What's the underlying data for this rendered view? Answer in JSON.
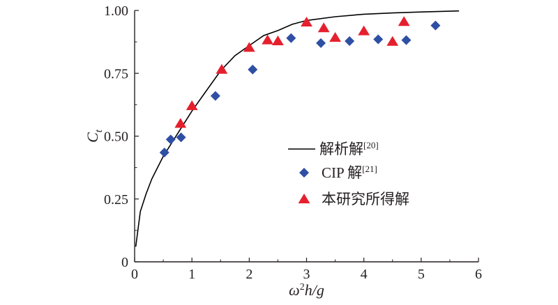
{
  "chart_data": {
    "type": "scatter",
    "xlabel": "ω²h/g",
    "ylabel": "Ct",
    "xlim": [
      0,
      6
    ],
    "ylim": [
      0,
      1.0
    ],
    "grid": false,
    "legend_position": "center-right",
    "x_ticks": [
      "0",
      "1",
      "2",
      "3",
      "4",
      "5",
      "6"
    ],
    "y_ticks": [
      "0",
      "0.25",
      "0.50",
      "0.75",
      "1.00"
    ],
    "series": [
      {
        "name": "解析解[20]",
        "kind": "line",
        "color": "#000000",
        "points": [
          [
            0.02,
            0.06
          ],
          [
            0.1,
            0.2
          ],
          [
            0.2,
            0.27
          ],
          [
            0.3,
            0.33
          ],
          [
            0.5,
            0.42
          ],
          [
            0.75,
            0.51
          ],
          [
            1.0,
            0.6
          ],
          [
            1.25,
            0.68
          ],
          [
            1.5,
            0.76
          ],
          [
            1.75,
            0.82
          ],
          [
            2.0,
            0.86
          ],
          [
            2.25,
            0.9
          ],
          [
            2.5,
            0.92
          ],
          [
            2.75,
            0.945
          ],
          [
            3.0,
            0.96
          ],
          [
            3.5,
            0.975
          ],
          [
            4.0,
            0.985
          ],
          [
            4.5,
            0.99
          ],
          [
            5.0,
            0.994
          ],
          [
            5.66,
            0.998
          ]
        ]
      },
      {
        "name": "CIP 解[21]",
        "kind": "diamond",
        "color": "#2e4fa3",
        "points": [
          [
            0.52,
            0.435
          ],
          [
            0.63,
            0.487
          ],
          [
            0.81,
            0.495
          ],
          [
            1.41,
            0.66
          ],
          [
            2.06,
            0.765
          ],
          [
            2.73,
            0.89
          ],
          [
            3.25,
            0.87
          ],
          [
            3.75,
            0.878
          ],
          [
            4.25,
            0.885
          ],
          [
            4.74,
            0.882
          ],
          [
            5.25,
            0.94
          ]
        ]
      },
      {
        "name": "本研究所得解",
        "kind": "triangle",
        "color": "#e5202e",
        "points": [
          [
            0.8,
            0.55
          ],
          [
            1.0,
            0.62
          ],
          [
            1.52,
            0.765
          ],
          [
            2.0,
            0.852
          ],
          [
            2.32,
            0.882
          ],
          [
            2.5,
            0.878
          ],
          [
            3.0,
            0.953
          ],
          [
            3.3,
            0.93
          ],
          [
            3.5,
            0.892
          ],
          [
            4.0,
            0.918
          ],
          [
            4.5,
            0.876
          ],
          [
            4.7,
            0.955
          ]
        ]
      }
    ]
  }
}
